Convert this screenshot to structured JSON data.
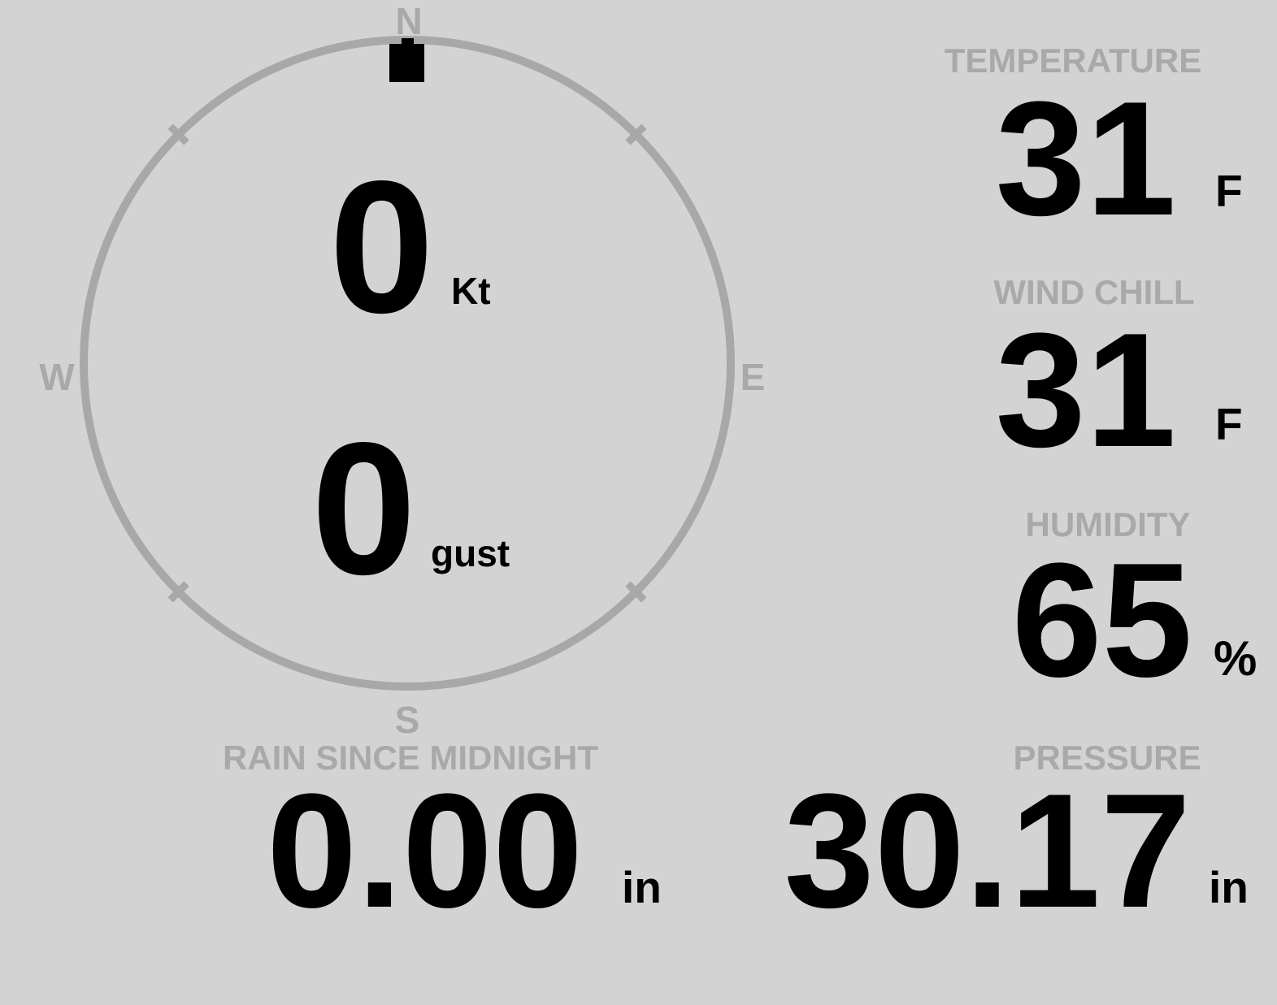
{
  "colors": {
    "background": "#d3d3d3",
    "muted": "#a9a9a9",
    "value": "#000000",
    "marker": "#000000"
  },
  "compass": {
    "direction_deg": 0,
    "cardinals": {
      "n": "N",
      "e": "E",
      "s": "S",
      "w": "W"
    },
    "wind_speed": {
      "value": "0",
      "unit": "Kt"
    },
    "wind_gust": {
      "value": "0",
      "unit": "gust"
    }
  },
  "metrics": {
    "temperature": {
      "label": "TEMPERATURE",
      "value": "31",
      "unit": "F"
    },
    "wind_chill": {
      "label": "WIND CHILL",
      "value": "31",
      "unit": "F"
    },
    "humidity": {
      "label": "HUMIDITY",
      "value": "65",
      "unit": "%"
    },
    "rain_since_midnight": {
      "label": "RAIN SINCE MIDNIGHT",
      "value": "0.00",
      "unit": "in"
    },
    "pressure": {
      "label": "PRESSURE",
      "value": "30.17",
      "unit": "in"
    }
  }
}
